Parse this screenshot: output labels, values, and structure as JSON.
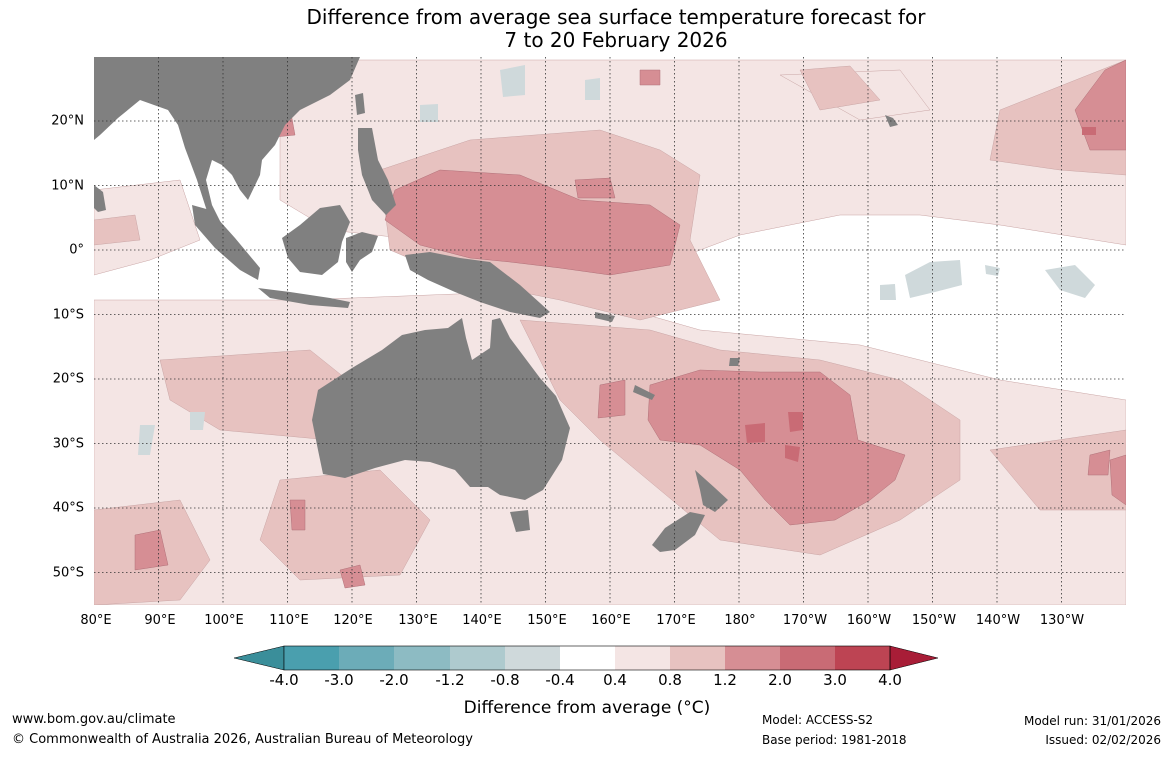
{
  "title": {
    "line1": "Difference from average sea surface temperature forecast for",
    "line2": "7 to 20 February 2026"
  },
  "map": {
    "longitude_labels": [
      "80°E",
      "90°E",
      "100°E",
      "110°E",
      "120°E",
      "130°E",
      "140°E",
      "150°E",
      "160°E",
      "170°E",
      "180°",
      "170°W",
      "160°W",
      "150°W",
      "140°W",
      "130°W"
    ],
    "latitude_labels": [
      "20°N",
      "10°N",
      "0°",
      "10°S",
      "20°S",
      "30°S",
      "40°S",
      "50°S"
    ],
    "colors": {
      "land": "#808080",
      "ocean": "#ffffff",
      "grid": "#333333"
    }
  },
  "colorbar": {
    "title": "Difference from average (°C)",
    "ticks": [
      "-4.0",
      "-3.0",
      "-2.0",
      "-1.2",
      "-0.8",
      "-0.4",
      "0.4",
      "0.8",
      "1.2",
      "2.0",
      "3.0",
      "4.0"
    ],
    "colors": [
      "#3a8e9a",
      "#4a9fae",
      "#6cacb8",
      "#8dbbc3",
      "#aecace",
      "#cfd9db",
      "#ffffff",
      "#f4e5e4",
      "#e7c2c0",
      "#d68e94",
      "#c96b75",
      "#bd4453",
      "#a81d37"
    ]
  },
  "footer": {
    "website": "www.bom.gov.au/climate",
    "copyright": "© Commonwealth of Australia 2026, Australian Bureau of Meteorology",
    "model": "Model: ACCESS-S2",
    "base_period": "Base period: 1981-2018",
    "model_run": "Model run: 31/01/2026",
    "issued": "Issued: 02/02/2026"
  }
}
